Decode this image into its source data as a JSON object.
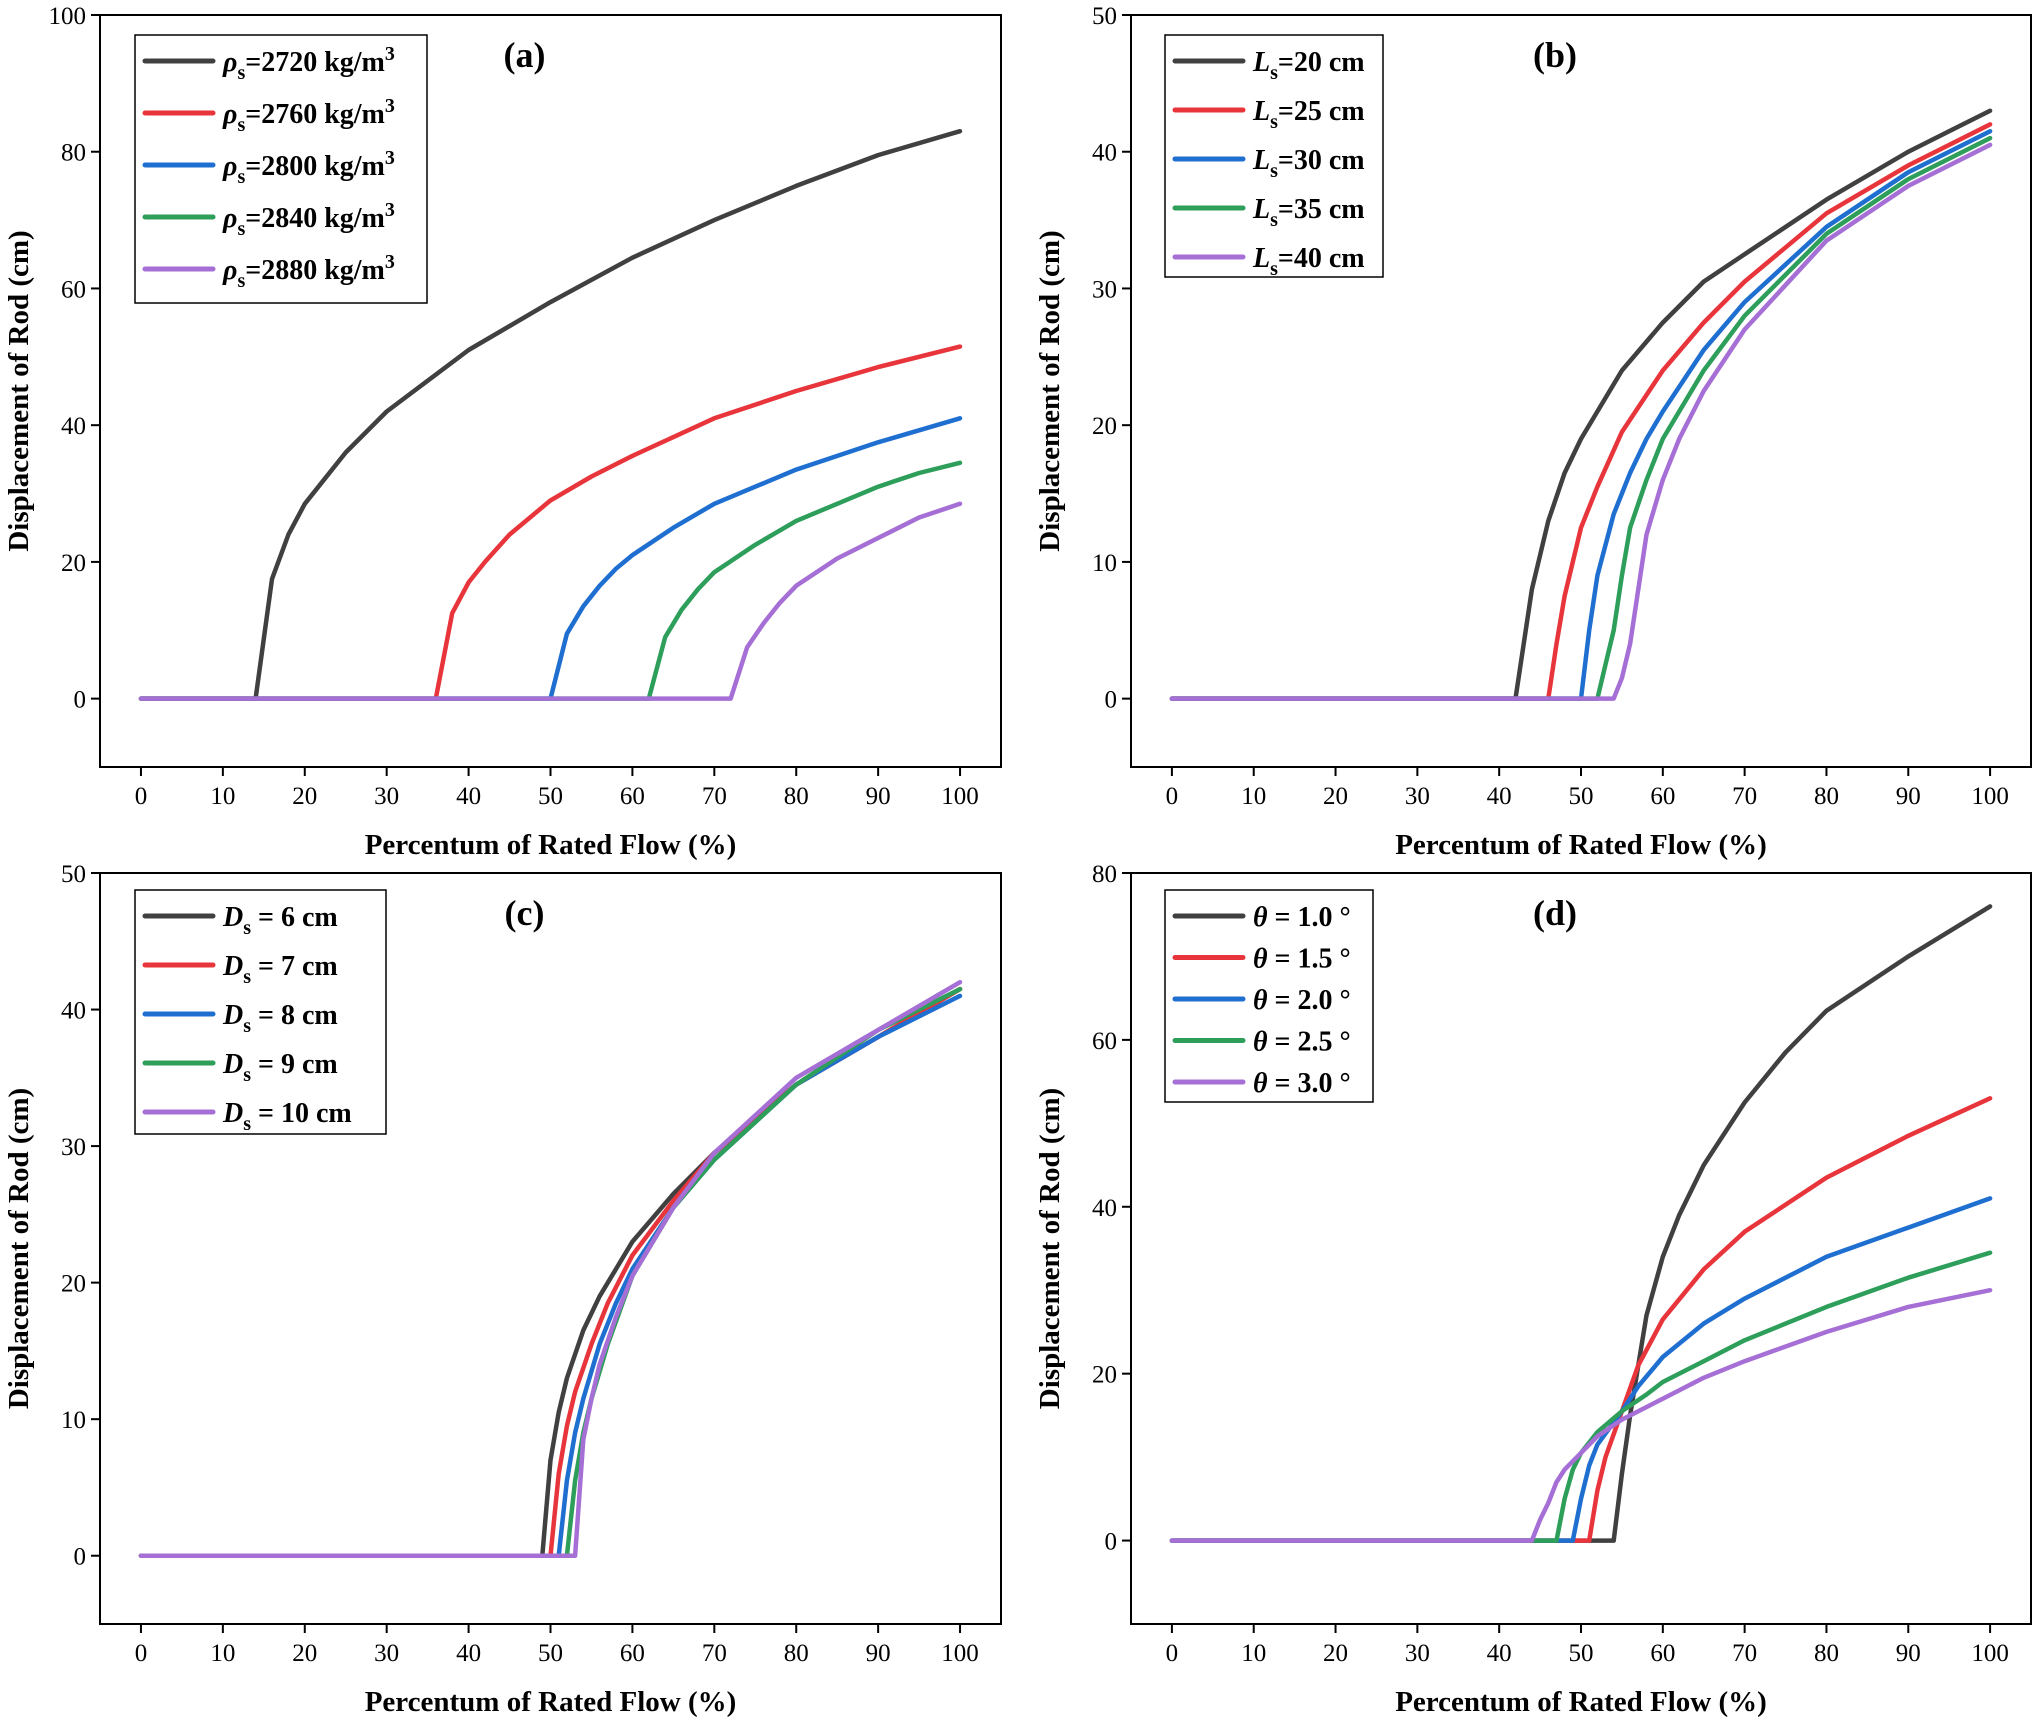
{
  "figure": {
    "colors": [
      "#404040",
      "#e8353b",
      "#1f6fd1",
      "#2e9e5b",
      "#a56fd6"
    ]
  },
  "chart_data": [
    {
      "id": "a",
      "panel_label": "(a)",
      "type": "line",
      "xlabel": "Percentum of Rated Flow (%)",
      "ylabel": "Displacement of Rod (cm)",
      "xlim": [
        -5,
        105
      ],
      "ylim": [
        -10,
        100
      ],
      "xticks": [
        0,
        10,
        20,
        30,
        40,
        50,
        60,
        70,
        80,
        90,
        100
      ],
      "yticks": [
        0,
        20,
        40,
        60,
        80,
        100
      ],
      "legend": "top-left",
      "series": [
        {
          "symbol": "ρ",
          "sub": "s",
          "rest": "=2720 kg/m",
          "sup": "3",
          "color": "#404040",
          "x": [
            0,
            14,
            16,
            18,
            20,
            25,
            30,
            40,
            50,
            60,
            70,
            80,
            90,
            100
          ],
          "y": [
            0,
            0,
            17.5,
            24,
            28.5,
            36,
            42,
            51,
            58,
            64.5,
            70,
            75,
            79.5,
            83
          ]
        },
        {
          "symbol": "ρ",
          "sub": "s",
          "rest": "=2760 kg/m",
          "sup": "3",
          "color": "#e8353b",
          "x": [
            0,
            36,
            38,
            40,
            42,
            45,
            50,
            55,
            60,
            70,
            80,
            90,
            100
          ],
          "y": [
            0,
            0,
            12.5,
            17,
            20,
            24,
            29,
            32.5,
            35.5,
            41,
            45,
            48.5,
            51.5
          ]
        },
        {
          "symbol": "ρ",
          "sub": "s",
          "rest": "=2800 kg/m",
          "sup": "3",
          "color": "#1f6fd1",
          "x": [
            0,
            50,
            52,
            54,
            56,
            58,
            60,
            65,
            70,
            80,
            90,
            100
          ],
          "y": [
            0,
            0,
            9.5,
            13.5,
            16.5,
            19,
            21,
            25,
            28.5,
            33.5,
            37.5,
            41
          ]
        },
        {
          "symbol": "ρ",
          "sub": "s",
          "rest": "=2840 kg/m",
          "sup": "3",
          "color": "#2e9e5b",
          "x": [
            0,
            62,
            64,
            66,
            68,
            70,
            75,
            80,
            85,
            90,
            95,
            100
          ],
          "y": [
            0,
            0,
            9,
            13,
            16,
            18.5,
            22.5,
            26,
            28.5,
            31,
            33,
            34.5
          ]
        },
        {
          "symbol": "ρ",
          "sub": "s",
          "rest": "=2880 kg/m",
          "sup": "3",
          "color": "#a56fd6",
          "x": [
            0,
            72,
            74,
            76,
            78,
            80,
            85,
            90,
            95,
            100
          ],
          "y": [
            0,
            0,
            7.5,
            11,
            14,
            16.5,
            20.5,
            23.5,
            26.5,
            28.5
          ]
        }
      ]
    },
    {
      "id": "b",
      "panel_label": "(b)",
      "type": "line",
      "xlabel": "Percentum of Rated Flow (%)",
      "ylabel": "Displacement of Rod (cm)",
      "xlim": [
        -5,
        105
      ],
      "ylim": [
        -5,
        50
      ],
      "xticks": [
        0,
        10,
        20,
        30,
        40,
        50,
        60,
        70,
        80,
        90,
        100
      ],
      "yticks": [
        0,
        10,
        20,
        30,
        40,
        50
      ],
      "legend": "top-left",
      "series": [
        {
          "symbol": "L",
          "sub": "s",
          "rest": "=20 cm",
          "sup": "",
          "color": "#404040",
          "x": [
            0,
            42,
            43,
            44,
            45,
            46,
            48,
            50,
            55,
            60,
            65,
            70,
            80,
            90,
            100
          ],
          "y": [
            0,
            0,
            4,
            8,
            10.5,
            13,
            16.5,
            19,
            24,
            27.5,
            30.5,
            32.5,
            36.5,
            40,
            43
          ]
        },
        {
          "symbol": "L",
          "sub": "s",
          "rest": "=25 cm",
          "sup": "",
          "color": "#e8353b",
          "x": [
            0,
            46,
            47,
            48,
            50,
            52,
            55,
            60,
            65,
            70,
            80,
            90,
            100
          ],
          "y": [
            0,
            0,
            4,
            7.5,
            12.5,
            15.5,
            19.5,
            24,
            27.5,
            30.5,
            35.5,
            39,
            42
          ]
        },
        {
          "symbol": "L",
          "sub": "s",
          "rest": "=30 cm",
          "sup": "",
          "color": "#1f6fd1",
          "x": [
            0,
            50,
            51,
            52,
            54,
            56,
            58,
            60,
            65,
            70,
            80,
            90,
            100
          ],
          "y": [
            0,
            0,
            5,
            9,
            13.5,
            16.5,
            19,
            21,
            25.5,
            29,
            34.5,
            38.5,
            41.5
          ]
        },
        {
          "symbol": "L",
          "sub": "s",
          "rest": "=35 cm",
          "sup": "",
          "color": "#2e9e5b",
          "x": [
            0,
            52,
            53,
            54,
            55,
            56,
            58,
            60,
            65,
            70,
            80,
            90,
            100
          ],
          "y": [
            0,
            0,
            2.5,
            5,
            9,
            12.5,
            16,
            19,
            24,
            28,
            34,
            38,
            41
          ]
        },
        {
          "symbol": "L",
          "sub": "s",
          "rest": "=40 cm",
          "sup": "",
          "color": "#a56fd6",
          "x": [
            0,
            54,
            55,
            56,
            57,
            58,
            60,
            62,
            65,
            70,
            80,
            90,
            100
          ],
          "y": [
            0,
            0,
            1.5,
            4,
            8,
            12,
            16,
            19,
            22.5,
            27,
            33.5,
            37.5,
            40.5
          ]
        }
      ]
    },
    {
      "id": "c",
      "panel_label": "(c)",
      "type": "line",
      "xlabel": "Percentum of Rated Flow (%)",
      "ylabel": "Displacement of Rod (cm)",
      "xlim": [
        -5,
        105
      ],
      "ylim": [
        -5,
        50
      ],
      "xticks": [
        0,
        10,
        20,
        30,
        40,
        50,
        60,
        70,
        80,
        90,
        100
      ],
      "yticks": [
        0,
        10,
        20,
        30,
        40,
        50
      ],
      "legend": "top-left",
      "series": [
        {
          "symbol": "D",
          "sub": "s",
          "rest": " = 6 cm",
          "sup": "",
          "color": "#404040",
          "x": [
            0,
            49,
            50,
            51,
            52,
            54,
            56,
            58,
            60,
            65,
            70,
            80,
            90,
            100
          ],
          "y": [
            0,
            0,
            7,
            10.5,
            13,
            16.5,
            19,
            21,
            23,
            26.5,
            29.5,
            34.5,
            38,
            41.5
          ]
        },
        {
          "symbol": "D",
          "sub": "s",
          "rest": " = 7 cm",
          "sup": "",
          "color": "#e8353b",
          "x": [
            0,
            50,
            51,
            52,
            53,
            55,
            57,
            60,
            65,
            70,
            80,
            90,
            100
          ],
          "y": [
            0,
            0,
            6,
            9.5,
            12,
            15.5,
            18.5,
            22,
            26,
            29.5,
            34.5,
            38,
            41.5
          ]
        },
        {
          "symbol": "D",
          "sub": "s",
          "rest": " = 8 cm",
          "sup": "",
          "color": "#1f6fd1",
          "x": [
            0,
            51,
            52,
            53,
            54,
            56,
            58,
            60,
            65,
            70,
            80,
            90,
            100
          ],
          "y": [
            0,
            0,
            5.5,
            9,
            11.5,
            15.5,
            18.5,
            21,
            25.5,
            29,
            34.5,
            38,
            41
          ]
        },
        {
          "symbol": "D",
          "sub": "s",
          "rest": " = 9 cm",
          "sup": "",
          "color": "#2e9e5b",
          "x": [
            0,
            52,
            53,
            54,
            55,
            57,
            60,
            65,
            70,
            80,
            90,
            100
          ],
          "y": [
            0,
            0,
            5.5,
            9,
            11.5,
            15.5,
            20.5,
            25.5,
            29,
            34.5,
            38.5,
            41.5
          ]
        },
        {
          "symbol": "D",
          "sub": "s",
          "rest": " = 10 cm",
          "sup": "",
          "color": "#a56fd6",
          "x": [
            0,
            53,
            54,
            55,
            56,
            58,
            60,
            65,
            70,
            80,
            90,
            100
          ],
          "y": [
            0,
            0,
            8.5,
            11.5,
            14,
            17.5,
            20.5,
            25.5,
            29.5,
            35,
            38.5,
            42
          ]
        }
      ]
    },
    {
      "id": "d",
      "panel_label": "(d)",
      "type": "line",
      "xlabel": "Percentum of Rated Flow (%)",
      "ylabel": "Displacement of Rod (cm)",
      "xlim": [
        -5,
        105
      ],
      "ylim": [
        -10,
        80
      ],
      "xticks": [
        0,
        10,
        20,
        30,
        40,
        50,
        60,
        70,
        80,
        90,
        100
      ],
      "yticks": [
        0,
        20,
        40,
        60,
        80
      ],
      "legend": "top-left",
      "series": [
        {
          "symbol": "θ",
          "sub": "",
          "rest": " = 1.0 °",
          "sup": "",
          "color": "#404040",
          "x": [
            0,
            54,
            55,
            56,
            57,
            58,
            60,
            62,
            65,
            70,
            75,
            80,
            90,
            100
          ],
          "y": [
            0,
            0,
            8,
            15,
            21,
            27,
            34,
            39,
            45,
            52.5,
            58.5,
            63.5,
            70,
            76
          ]
        },
        {
          "symbol": "θ",
          "sub": "",
          "rest": " = 1.5 °",
          "sup": "",
          "color": "#e8353b",
          "x": [
            0,
            51,
            52,
            53,
            55,
            57,
            60,
            65,
            70,
            80,
            90,
            100
          ],
          "y": [
            0,
            0,
            6,
            10,
            15.5,
            21,
            26.5,
            32.5,
            37,
            43.5,
            48.5,
            53
          ]
        },
        {
          "symbol": "θ",
          "sub": "",
          "rest": " = 2.0 °",
          "sup": "",
          "color": "#1f6fd1",
          "x": [
            0,
            49,
            50,
            51,
            52,
            55,
            57,
            60,
            65,
            70,
            80,
            90,
            100
          ],
          "y": [
            0,
            0,
            5,
            9,
            11.5,
            15.5,
            18.5,
            22,
            26,
            29,
            34,
            37.5,
            41
          ]
        },
        {
          "symbol": "θ",
          "sub": "",
          "rest": " = 2.5 °",
          "sup": "",
          "color": "#2e9e5b",
          "x": [
            0,
            47,
            48,
            49,
            50,
            52,
            55,
            58,
            60,
            65,
            70,
            80,
            90,
            100
          ],
          "y": [
            0,
            0,
            5,
            8.5,
            10.5,
            13,
            15.5,
            17.5,
            19,
            21.5,
            24,
            28,
            31.5,
            34.5
          ]
        },
        {
          "symbol": "θ",
          "sub": "",
          "rest": " = 3.0 °",
          "sup": "",
          "color": "#a56fd6",
          "x": [
            0,
            44,
            45,
            46,
            47,
            48,
            50,
            52,
            55,
            60,
            65,
            70,
            80,
            90,
            100
          ],
          "y": [
            0,
            0,
            2.5,
            4.5,
            7,
            8.5,
            10.5,
            12.5,
            14.5,
            17,
            19.5,
            21.5,
            25,
            28,
            30
          ]
        }
      ]
    }
  ]
}
